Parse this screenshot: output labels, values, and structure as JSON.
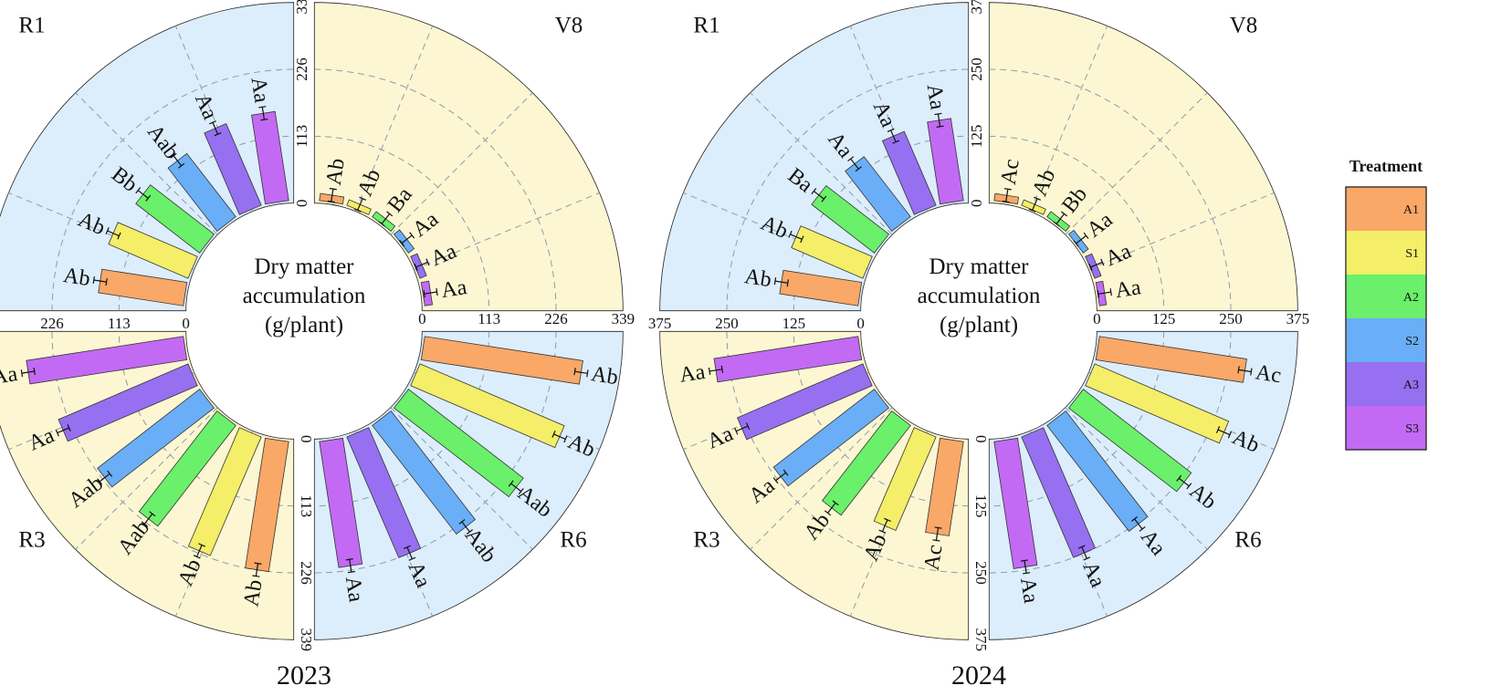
{
  "chart_data": {
    "type": "circular-bar",
    "treatments": [
      "A1",
      "S1",
      "A2",
      "S2",
      "A3",
      "S3"
    ],
    "colors": {
      "A1": "#f9a867",
      "S1": "#f4ee68",
      "A2": "#6af06a",
      "S2": "#6aaef7",
      "A3": "#9670f1",
      "S3": "#c26af4"
    },
    "background_colors": {
      "blue": "#dcedfb",
      "yellow": "#fcf7d2"
    },
    "legend": {
      "title": "Treatment",
      "labels": [
        "A1",
        "S1",
        "A2",
        "S2",
        "A3",
        "S3"
      ]
    },
    "center_label": [
      "Dry matter",
      "accumulation",
      "(g/plant)"
    ],
    "panels": [
      {
        "year": "2023",
        "ticks": [
          "0",
          "113",
          "226",
          "339"
        ],
        "max": 339,
        "stages": [
          {
            "name": "V8",
            "values": [
              12,
              10,
              11,
              12,
              12,
              13
            ],
            "letters": [
              "Ab",
              "Ab",
              "Ba",
              "Aa",
              "Aa",
              "Aa"
            ]
          },
          {
            "name": "R6",
            "values": [
              270,
              265,
              245,
              232,
              222,
              215
            ],
            "letters": [
              "Ab",
              "Ab",
              "Aab",
              "Aab",
              "Aa",
              "Aa"
            ]
          },
          {
            "name": "R3",
            "values": [
              222,
              218,
              215,
              218,
              238,
              268
            ],
            "letters": [
              "Ab",
              "Ab",
              "Aab",
              "Aab",
              "Aa",
              "Aa"
            ]
          },
          {
            "name": "R1",
            "values": [
              145,
              146,
              136,
              135,
              150,
              152
            ],
            "letters": [
              "Ab",
              "Ab",
              "Bb",
              "Aab",
              "Aa",
              "Aa"
            ]
          }
        ]
      },
      {
        "year": "2024",
        "ticks": [
          "0",
          "125",
          "250",
          "375"
        ],
        "max": 375,
        "stages": [
          {
            "name": "V8",
            "values": [
              13,
              11,
              12,
              12,
              13,
              13
            ],
            "letters": [
              "Ac",
              "Ab",
              "Bb",
              "Aa",
              "Aa",
              "Aa"
            ]
          },
          {
            "name": "R6",
            "values": [
              278,
              272,
              255,
              250,
              245,
              240
            ],
            "letters": [
              "Ac",
              "Ab",
              "Ab",
              "Aa",
              "Aa",
              "Aa"
            ]
          },
          {
            "name": "R3",
            "values": [
              178,
              190,
              212,
              238,
              255,
              272
            ],
            "letters": [
              "Ac",
              "Ab",
              "Ab",
              "Aa",
              "Aa",
              "Aa"
            ]
          },
          {
            "name": "R1",
            "values": [
              148,
              145,
              148,
              142,
              150,
              155
            ],
            "letters": [
              "Ab",
              "Ab",
              "Ba",
              "Aa",
              "Aa",
              "Aa"
            ]
          }
        ]
      }
    ]
  }
}
